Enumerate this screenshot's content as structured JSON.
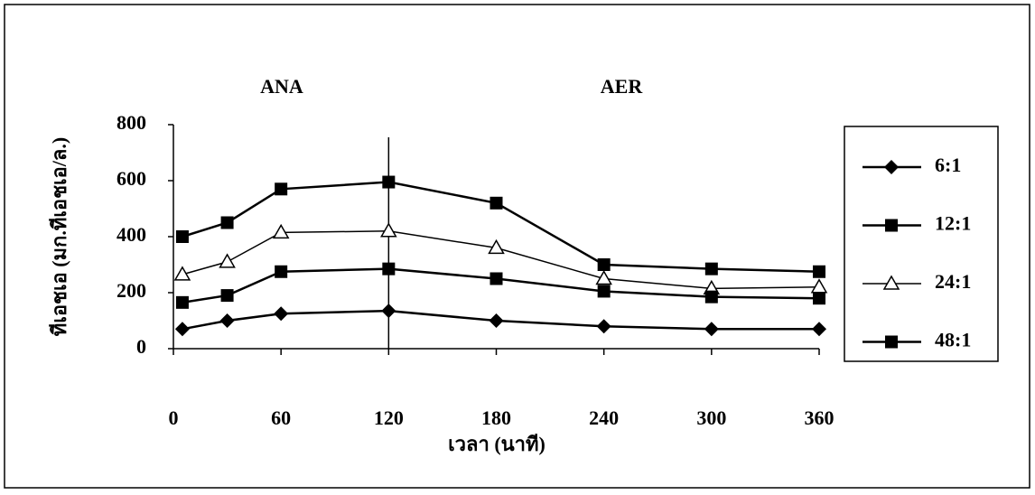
{
  "chart_data": {
    "type": "line",
    "xlabel": "เวลา (นาที)",
    "ylabel": "ทีเอชเอ (มก.ทีเอชเอ/ล.)",
    "annotations": [
      "ANA",
      "AER"
    ],
    "vline": 120,
    "x": [
      5,
      30,
      60,
      120,
      180,
      240,
      300,
      360
    ],
    "series": [
      {
        "name": "6:1",
        "color": "#000000",
        "marker": "diamond",
        "values": [
          70,
          100,
          125,
          135,
          100,
          80,
          70,
          70
        ]
      },
      {
        "name": "12:1",
        "color": "#000000",
        "marker": "square",
        "values": [
          400,
          450,
          570,
          595,
          520,
          300,
          285,
          275
        ]
      },
      {
        "name": "24:1",
        "color": "#000000",
        "marker": "triangle",
        "values": [
          265,
          310,
          415,
          420,
          360,
          250,
          215,
          220
        ]
      },
      {
        "name": "48:1",
        "color": "#000000",
        "marker": "square",
        "values": [
          165,
          190,
          275,
          285,
          250,
          205,
          185,
          180
        ]
      }
    ],
    "xlim": [
      0,
      360
    ],
    "xticks": [
      0,
      60,
      120,
      180,
      240,
      300,
      360
    ],
    "ylim": [
      0,
      800
    ],
    "yticks": [
      0,
      200,
      400,
      600,
      800
    ]
  }
}
